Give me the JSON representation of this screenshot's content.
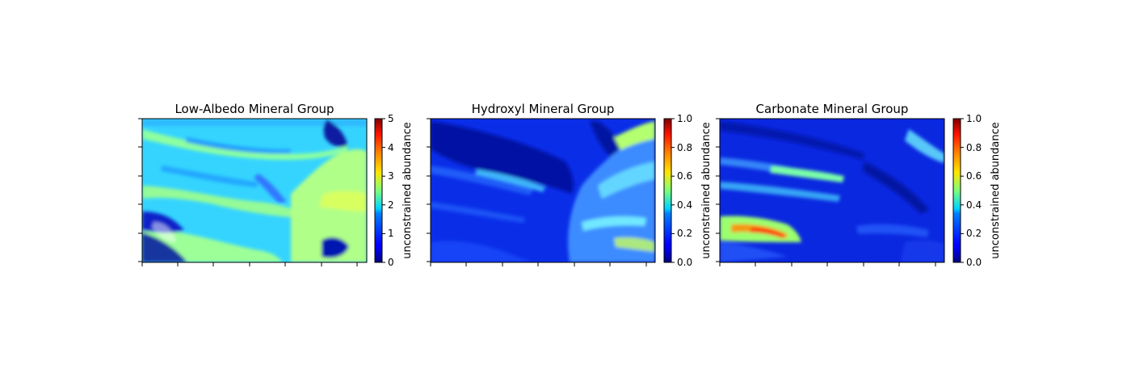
{
  "figure": {
    "background": "#ffffff"
  },
  "chart_data": [
    {
      "type": "heatmap",
      "title": "Low-Albedo Mineral Group",
      "colormap": "jet",
      "colorbar": {
        "label": "unconstrained abundance",
        "range": [
          0,
          5
        ],
        "ticks": [
          "0",
          "1",
          "2",
          "3",
          "4",
          "5"
        ]
      },
      "x_ticks_labeled": false,
      "y_ticks_labeled": false,
      "dominant_value": 1.9
    },
    {
      "type": "heatmap",
      "title": "Hydroxyl Mineral Group",
      "colormap": "jet",
      "colorbar": {
        "label": "unconstrained abundance",
        "range": [
          0,
          1
        ],
        "ticks": [
          "0.0",
          "0.2",
          "0.4",
          "0.6",
          "0.8",
          "1.0"
        ]
      },
      "x_ticks_labeled": false,
      "y_ticks_labeled": false,
      "dominant_value": 0.15
    },
    {
      "type": "heatmap",
      "title": "Carbonate Mineral Group",
      "colormap": "jet",
      "colorbar": {
        "label": "unconstrained abundance",
        "range": [
          0,
          1
        ],
        "ticks": [
          "0.0",
          "0.2",
          "0.4",
          "0.6",
          "0.8",
          "1.0"
        ]
      },
      "x_ticks_labeled": false,
      "y_ticks_labeled": false,
      "dominant_value": 0.15
    }
  ]
}
